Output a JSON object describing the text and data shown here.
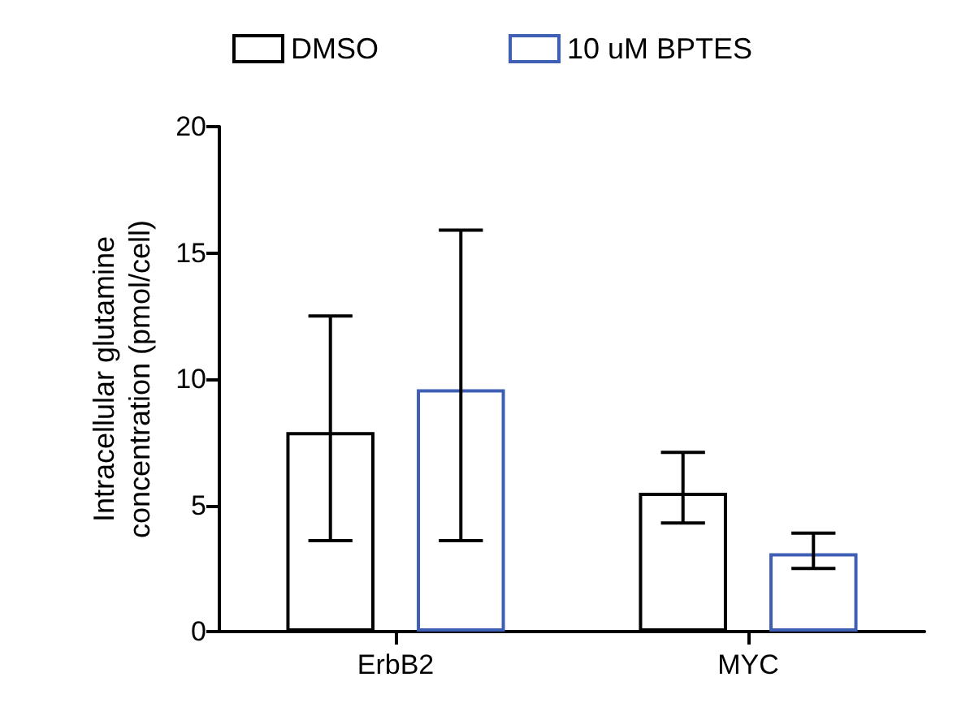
{
  "chart_data": {
    "type": "bar",
    "ylabel": "Intracellular glutamine\nconcentration (pmol/cell)",
    "categories": [
      "ErbB2",
      "MYC"
    ],
    "series": [
      {
        "name": "DMSO",
        "color": "#000000",
        "values": [
          7.9,
          5.5
        ],
        "errors": [
          [
            3.6,
            12.5
          ],
          [
            4.3,
            7.1
          ]
        ]
      },
      {
        "name": "10 uM BPTES",
        "color": "#3f5fb5",
        "values": [
          9.6,
          3.1
        ],
        "errors": [
          [
            3.6,
            15.9
          ],
          [
            2.5,
            3.9
          ]
        ]
      }
    ],
    "ylim": [
      0,
      20
    ],
    "yticks": [
      0,
      5,
      10,
      15,
      20
    ],
    "grid": false,
    "legend": "top"
  }
}
